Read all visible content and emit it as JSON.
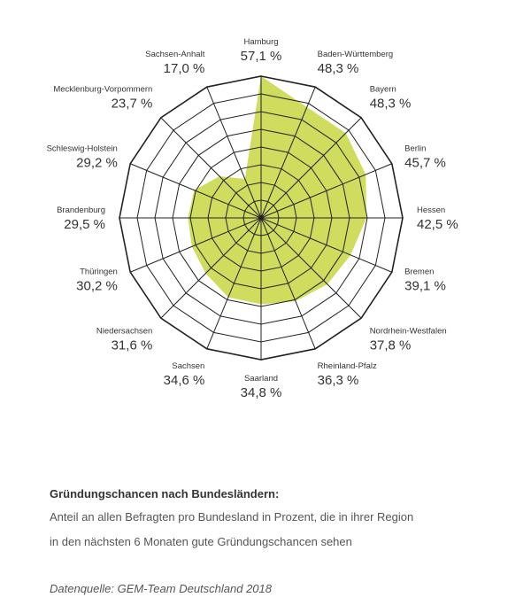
{
  "chart_data": {
    "type": "radar",
    "unit": "%",
    "max_value": 57.1,
    "rings": 8,
    "fill_color": "#cfdc5e",
    "grid_color": "#222222",
    "categories": [
      "Hamburg",
      "Baden-Württemberg",
      "Bayern",
      "Berlin",
      "Hessen",
      "Bremen",
      "Nordrhein-Westfalen",
      "Rheinland-Pfalz",
      "Saarland",
      "Sachsen",
      "Niedersachsen",
      "Thüringen",
      "Brandenburg",
      "Schleswig-Holstein",
      "Mecklenburg-Vorpommern",
      "Sachsen-Anhalt"
    ],
    "values": [
      57.1,
      48.3,
      48.3,
      45.7,
      42.5,
      39.1,
      37.8,
      36.3,
      34.8,
      34.6,
      31.6,
      30.2,
      29.5,
      29.2,
      23.7,
      17.0
    ],
    "value_labels": [
      "57,1 %",
      "48,3 %",
      "48,3 %",
      "45,7 %",
      "42,5 %",
      "39,1 %",
      "37,8 %",
      "36,3 %",
      "34,8 %",
      "34,6 %",
      "31,6 %",
      "30,2 %",
      "29,5 %",
      "29,2 %",
      "23,7 %",
      "17,0 %"
    ]
  },
  "caption": {
    "title": "Gründungschancen nach Bundesländern:",
    "line1": "Anteil an allen Befragten pro Bundesland in Prozent, die in ihrer Region",
    "line2": "in den nächsten 6 Monaten gute Gründungschancen sehen",
    "source": "Datenquelle: GEM-Team Deutschland 2018"
  }
}
